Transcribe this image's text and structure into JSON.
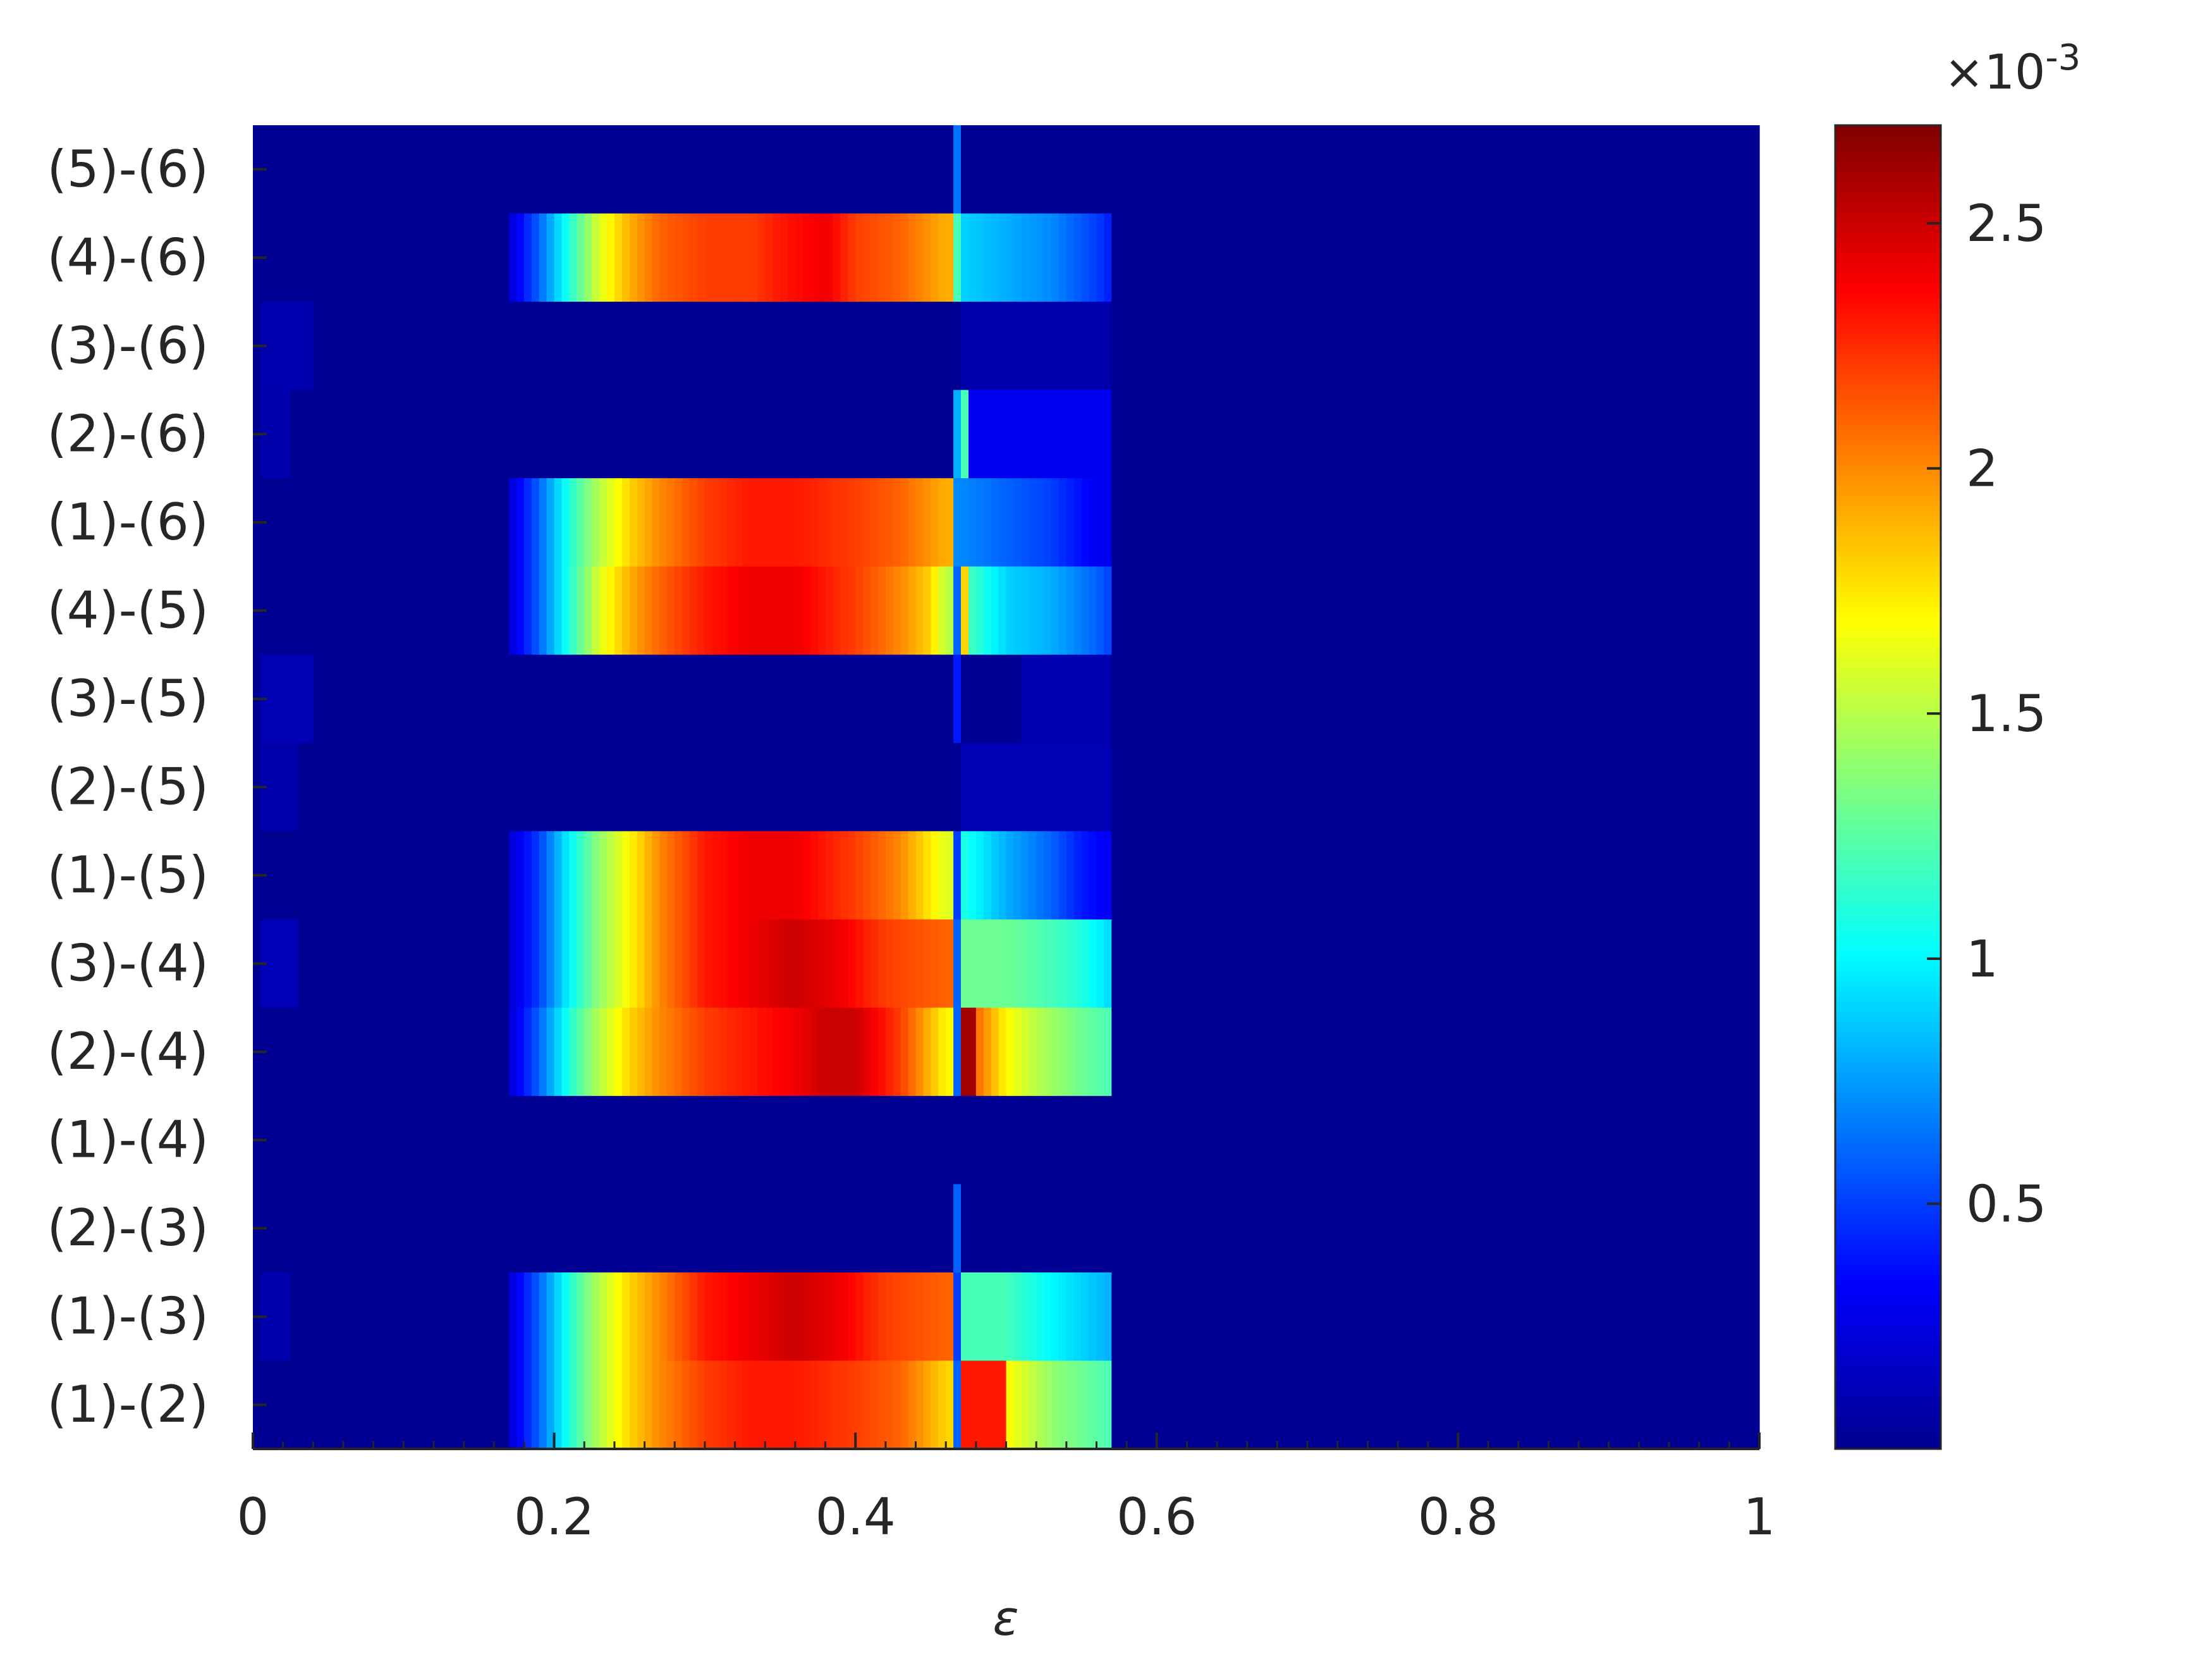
{
  "chart_data": {
    "type": "heatmap",
    "title": "",
    "xlabel": "ε",
    "ylabel": "",
    "xlim": [
      0,
      1
    ],
    "x_ticks": [
      0,
      0.2,
      0.4,
      0.6,
      0.8,
      1
    ],
    "x_tick_labels": [
      "0",
      "0.2",
      "0.4",
      "0.6",
      "0.8",
      "1"
    ],
    "x_minor_tick_step": 0.02,
    "colormap": "jet",
    "colorbar": {
      "range": [
        0,
        0.0027
      ],
      "ticks": [
        0.0005,
        0.001,
        0.0015,
        0.002,
        0.0025
      ],
      "tick_labels": [
        "0.5",
        "1",
        "1.5",
        "2",
        "2.5"
      ],
      "exponent_prefix": "×10",
      "exponent": "-3"
    },
    "cell_width": 0.005,
    "rows": [
      {
        "label": "(5)-(6)",
        "base": 5e-05,
        "segments": [
          {
            "x0": 0.465,
            "x1": 0.47,
            "v": 0.00065
          }
        ]
      },
      {
        "label": "(4)-(6)",
        "base": 5e-05,
        "segments": [
          {
            "x0": 0.17,
            "x1": 0.465,
            "p": [
              [
                0.17,
                0.0002
              ],
              [
                0.19,
                0.0006
              ],
              [
                0.21,
                0.0011
              ],
              [
                0.23,
                0.0016
              ],
              [
                0.25,
                0.0019
              ],
              [
                0.27,
                0.0021
              ],
              [
                0.3,
                0.0022
              ],
              [
                0.33,
                0.0022
              ],
              [
                0.35,
                0.0023
              ],
              [
                0.38,
                0.0024
              ],
              [
                0.4,
                0.0022
              ],
              [
                0.43,
                0.0021
              ],
              [
                0.46,
                0.0019
              ]
            ]
          },
          {
            "x0": 0.465,
            "x1": 0.47,
            "v": 0.0012
          },
          {
            "x0": 0.47,
            "x1": 0.57,
            "p": [
              [
                0.47,
                0.0009
              ],
              [
                0.5,
                0.0008
              ],
              [
                0.53,
                0.0007
              ],
              [
                0.56,
                0.0005
              ],
              [
                0.57,
                0.0004
              ]
            ]
          }
        ]
      },
      {
        "label": "(3)-(6)",
        "base": 5e-05,
        "segments": [
          {
            "x0": 0.005,
            "x1": 0.04,
            "v": 0.00013
          },
          {
            "x0": 0.47,
            "x1": 0.57,
            "v": 0.00012
          }
        ]
      },
      {
        "label": "(2)-(6)",
        "base": 5e-05,
        "segments": [
          {
            "x0": 0.005,
            "x1": 0.025,
            "v": 0.00012
          },
          {
            "x0": 0.465,
            "x1": 0.47,
            "v": 0.0008
          },
          {
            "x0": 0.47,
            "x1": 0.475,
            "v": 0.0012
          },
          {
            "x0": 0.475,
            "x1": 0.57,
            "v": 0.0003
          }
        ]
      },
      {
        "label": "(1)-(6)",
        "base": 5e-05,
        "segments": [
          {
            "x0": 0.17,
            "x1": 0.465,
            "p": [
              [
                0.17,
                0.0002
              ],
              [
                0.19,
                0.0006
              ],
              [
                0.21,
                0.0011
              ],
              [
                0.23,
                0.0015
              ],
              [
                0.25,
                0.0018
              ],
              [
                0.27,
                0.002
              ],
              [
                0.3,
                0.0022
              ],
              [
                0.33,
                0.0023
              ],
              [
                0.36,
                0.0023
              ],
              [
                0.4,
                0.0022
              ],
              [
                0.43,
                0.0021
              ],
              [
                0.46,
                0.0019
              ]
            ]
          },
          {
            "x0": 0.465,
            "x1": 0.47,
            "v": 0.0007
          },
          {
            "x0": 0.47,
            "x1": 0.57,
            "p": [
              [
                0.47,
                0.0007
              ],
              [
                0.5,
                0.0006
              ],
              [
                0.53,
                0.0005
              ],
              [
                0.56,
                0.0003
              ],
              [
                0.57,
                0.0003
              ]
            ]
          }
        ]
      },
      {
        "label": "(4)-(5)",
        "base": 5e-05,
        "segments": [
          {
            "x0": 0.17,
            "x1": 0.465,
            "p": [
              [
                0.17,
                0.0002
              ],
              [
                0.19,
                0.0006
              ],
              [
                0.21,
                0.0011
              ],
              [
                0.23,
                0.0016
              ],
              [
                0.25,
                0.0019
              ],
              [
                0.27,
                0.0021
              ],
              [
                0.3,
                0.0023
              ],
              [
                0.33,
                0.0024
              ],
              [
                0.36,
                0.0024
              ],
              [
                0.4,
                0.0022
              ],
              [
                0.43,
                0.002
              ],
              [
                0.45,
                0.0018
              ],
              [
                0.46,
                0.0015
              ]
            ]
          },
          {
            "x0": 0.465,
            "x1": 0.47,
            "v": 0.0006
          },
          {
            "x0": 0.47,
            "x1": 0.475,
            "v": 0.0018
          },
          {
            "x0": 0.475,
            "x1": 0.57,
            "p": [
              [
                0.475,
                0.0012
              ],
              [
                0.5,
                0.0009
              ],
              [
                0.53,
                0.0008
              ],
              [
                0.56,
                0.0006
              ],
              [
                0.57,
                0.0005
              ]
            ]
          }
        ]
      },
      {
        "label": "(3)-(5)",
        "base": 5e-05,
        "segments": [
          {
            "x0": 0.005,
            "x1": 0.04,
            "v": 0.00014
          },
          {
            "x0": 0.465,
            "x1": 0.47,
            "v": 0.0004
          },
          {
            "x0": 0.51,
            "x1": 0.57,
            "v": 0.00013
          }
        ]
      },
      {
        "label": "(2)-(5)",
        "base": 5e-05,
        "segments": [
          {
            "x0": 0.005,
            "x1": 0.03,
            "v": 0.00012
          },
          {
            "x0": 0.47,
            "x1": 0.57,
            "v": 0.00014
          }
        ]
      },
      {
        "label": "(1)-(5)",
        "base": 5e-05,
        "segments": [
          {
            "x0": 0.17,
            "x1": 0.465,
            "p": [
              [
                0.17,
                0.0002
              ],
              [
                0.19,
                0.0005
              ],
              [
                0.21,
                0.001
              ],
              [
                0.23,
                0.0014
              ],
              [
                0.25,
                0.0017
              ],
              [
                0.27,
                0.002
              ],
              [
                0.3,
                0.0023
              ],
              [
                0.33,
                0.0024
              ],
              [
                0.36,
                0.0024
              ],
              [
                0.4,
                0.0022
              ],
              [
                0.43,
                0.002
              ],
              [
                0.46,
                0.0016
              ]
            ]
          },
          {
            "x0": 0.465,
            "x1": 0.47,
            "v": 0.0005
          },
          {
            "x0": 0.47,
            "x1": 0.57,
            "p": [
              [
                0.47,
                0.0011
              ],
              [
                0.5,
                0.0008
              ],
              [
                0.53,
                0.0006
              ],
              [
                0.55,
                0.0004
              ],
              [
                0.57,
                0.0003
              ]
            ]
          }
        ]
      },
      {
        "label": "(3)-(4)",
        "base": 5e-05,
        "segments": [
          {
            "x0": 0.005,
            "x1": 0.03,
            "v": 0.00015
          },
          {
            "x0": 0.17,
            "x1": 0.465,
            "p": [
              [
                0.17,
                0.0002
              ],
              [
                0.19,
                0.0005
              ],
              [
                0.21,
                0.001
              ],
              [
                0.23,
                0.0014
              ],
              [
                0.25,
                0.0017
              ],
              [
                0.27,
                0.002
              ],
              [
                0.3,
                0.0023
              ],
              [
                0.33,
                0.0024
              ],
              [
                0.36,
                0.0025
              ],
              [
                0.39,
                0.0024
              ],
              [
                0.42,
                0.0022
              ],
              [
                0.46,
                0.0021
              ]
            ]
          },
          {
            "x0": 0.465,
            "x1": 0.47,
            "v": 0.0006
          },
          {
            "x0": 0.47,
            "x1": 0.57,
            "p": [
              [
                0.47,
                0.0013
              ],
              [
                0.5,
                0.0013
              ],
              [
                0.53,
                0.0012
              ],
              [
                0.55,
                0.0011
              ],
              [
                0.57,
                0.0009
              ]
            ]
          }
        ]
      },
      {
        "label": "(2)-(4)",
        "base": 5e-05,
        "segments": [
          {
            "x0": 0.17,
            "x1": 0.465,
            "p": [
              [
                0.17,
                0.0002
              ],
              [
                0.19,
                0.0006
              ],
              [
                0.21,
                0.0011
              ],
              [
                0.23,
                0.0015
              ],
              [
                0.25,
                0.0018
              ],
              [
                0.27,
                0.002
              ],
              [
                0.3,
                0.0022
              ],
              [
                0.33,
                0.0023
              ],
              [
                0.36,
                0.0024
              ],
              [
                0.38,
                0.0025
              ],
              [
                0.4,
                0.0025
              ],
              [
                0.43,
                0.0022
              ],
              [
                0.46,
                0.0017
              ]
            ]
          },
          {
            "x0": 0.465,
            "x1": 0.47,
            "v": 0.0006
          },
          {
            "x0": 0.47,
            "x1": 0.48,
            "v": 0.0026
          },
          {
            "x0": 0.48,
            "x1": 0.57,
            "p": [
              [
                0.48,
                0.0021
              ],
              [
                0.5,
                0.0017
              ],
              [
                0.52,
                0.0015
              ],
              [
                0.55,
                0.0013
              ],
              [
                0.57,
                0.0012
              ]
            ]
          }
        ]
      },
      {
        "label": "(1)-(4)",
        "base": 5e-05,
        "segments": []
      },
      {
        "label": "(2)-(3)",
        "base": 5e-05,
        "segments": [
          {
            "x0": 0.465,
            "x1": 0.47,
            "v": 0.0006
          }
        ]
      },
      {
        "label": "(1)-(3)",
        "base": 5e-05,
        "segments": [
          {
            "x0": 0.005,
            "x1": 0.025,
            "v": 0.00012
          },
          {
            "x0": 0.17,
            "x1": 0.465,
            "p": [
              [
                0.17,
                0.0002
              ],
              [
                0.19,
                0.0006
              ],
              [
                0.21,
                0.0011
              ],
              [
                0.23,
                0.0015
              ],
              [
                0.25,
                0.0018
              ],
              [
                0.27,
                0.002
              ],
              [
                0.3,
                0.0023
              ],
              [
                0.33,
                0.0024
              ],
              [
                0.36,
                0.0025
              ],
              [
                0.39,
                0.0024
              ],
              [
                0.42,
                0.0022
              ],
              [
                0.46,
                0.0021
              ]
            ]
          },
          {
            "x0": 0.465,
            "x1": 0.47,
            "v": 0.0005
          },
          {
            "x0": 0.47,
            "x1": 0.57,
            "p": [
              [
                0.47,
                0.0012
              ],
              [
                0.5,
                0.0012
              ],
              [
                0.53,
                0.001
              ],
              [
                0.55,
                0.0009
              ],
              [
                0.57,
                0.0008
              ]
            ]
          }
        ]
      },
      {
        "label": "(1)-(2)",
        "base": 5e-05,
        "segments": [
          {
            "x0": 0.17,
            "x1": 0.465,
            "p": [
              [
                0.17,
                0.0002
              ],
              [
                0.19,
                0.0006
              ],
              [
                0.21,
                0.0011
              ],
              [
                0.23,
                0.0015
              ],
              [
                0.25,
                0.0018
              ],
              [
                0.27,
                0.002
              ],
              [
                0.3,
                0.0022
              ],
              [
                0.33,
                0.0023
              ],
              [
                0.36,
                0.0023
              ],
              [
                0.4,
                0.0022
              ],
              [
                0.43,
                0.0021
              ],
              [
                0.46,
                0.0018
              ]
            ]
          },
          {
            "x0": 0.465,
            "x1": 0.47,
            "v": 0.0006
          },
          {
            "x0": 0.47,
            "x1": 0.5,
            "v": 0.0023
          },
          {
            "x0": 0.5,
            "x1": 0.57,
            "p": [
              [
                0.5,
                0.0017
              ],
              [
                0.53,
                0.0014
              ],
              [
                0.55,
                0.0013
              ],
              [
                0.57,
                0.0012
              ]
            ]
          }
        ]
      }
    ]
  }
}
